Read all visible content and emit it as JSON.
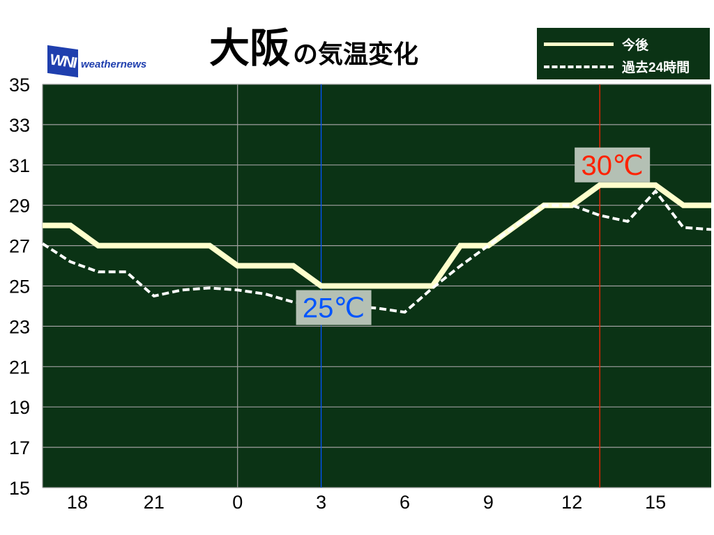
{
  "header": {
    "title_city": "大阪",
    "title_suffix": "の気温変化",
    "logo_mark": "WNI",
    "logo_text": "weathernews"
  },
  "chart_data": {
    "type": "line",
    "title": "大阪の気温変化",
    "x": [
      17,
      18,
      19,
      20,
      21,
      22,
      23,
      0,
      1,
      2,
      3,
      4,
      5,
      6,
      7,
      8,
      9,
      10,
      11,
      12,
      13,
      14,
      15,
      16,
      17
    ],
    "x_ticks": [
      18,
      21,
      0,
      3,
      6,
      9,
      12,
      15
    ],
    "y_ticks": [
      15,
      17,
      19,
      21,
      23,
      25,
      27,
      29,
      31,
      33,
      35
    ],
    "ylim": [
      15,
      35
    ],
    "grid": true,
    "legend_position": "top-right",
    "series": [
      {
        "name": "今後",
        "style": "solid",
        "color": "#ffffcc",
        "values": [
          28,
          28,
          27,
          27,
          27,
          27,
          27,
          26,
          26,
          26,
          25,
          25,
          25,
          25,
          25,
          27,
          27,
          28,
          29,
          29,
          30,
          30,
          30,
          29,
          29
        ]
      },
      {
        "name": "過去24時間",
        "style": "dashed",
        "color": "#ffffff",
        "values": [
          27.1,
          26.2,
          25.7,
          25.7,
          24.5,
          24.8,
          24.9,
          24.8,
          24.6,
          24.2,
          24.1,
          24.0,
          23.9,
          23.7,
          24.9,
          26.0,
          27.0,
          28.0,
          29.0,
          29.0,
          28.5,
          28.2,
          29.7,
          27.9,
          27.8
        ]
      }
    ],
    "annotations": [
      {
        "text": "25℃",
        "x": 3,
        "color": "#0055ff",
        "kind": "min"
      },
      {
        "text": "30℃",
        "x": 13,
        "color": "#ff2200",
        "kind": "max"
      }
    ],
    "colors": {
      "plot_bg": "#0b3315",
      "grid": "#a0a0a0",
      "label_box": "#b4c0b4"
    }
  }
}
